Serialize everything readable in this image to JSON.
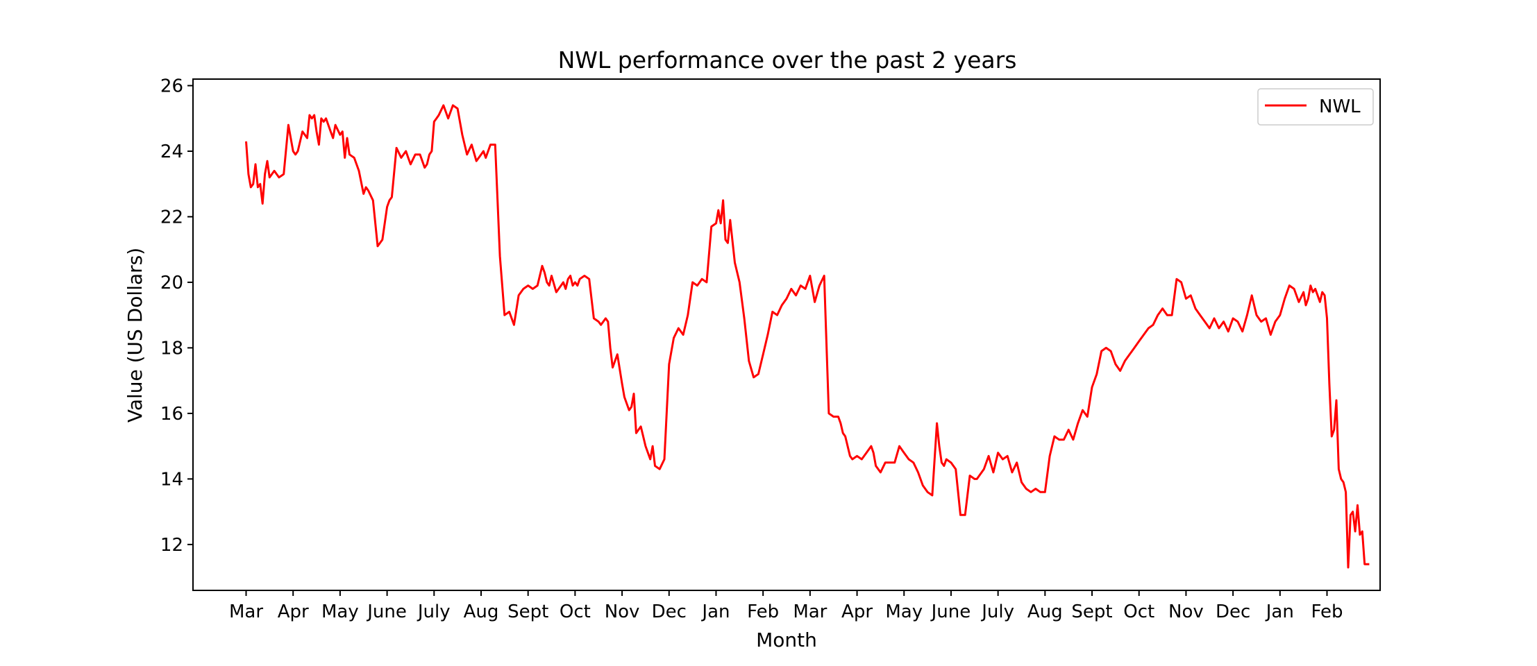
{
  "chart_data": {
    "type": "line",
    "title": "NWL performance over the past 2 years",
    "xlabel": "Month",
    "ylabel": "Value (US Dollars)",
    "grid": false,
    "legend": {
      "location": "top-right",
      "entries": [
        "NWL"
      ]
    },
    "ylim": [
      10.6,
      26.2
    ],
    "y_ticks": [
      12,
      14,
      16,
      18,
      20,
      22,
      24,
      26
    ],
    "x_ticks": [
      "Mar",
      "Apr",
      "May",
      "June",
      "July",
      "Aug",
      "Sept",
      "Oct",
      "Nov",
      "Dec",
      "Jan",
      "Feb",
      "Mar",
      "Apr",
      "May",
      "June",
      "July",
      "Aug",
      "Sept",
      "Oct",
      "Nov",
      "Dec",
      "Jan",
      "Feb"
    ],
    "x_range_months": [
      -1.13,
      24.13
    ],
    "series": [
      {
        "name": "NWL",
        "color": "#ff0000",
        "x_months": [
          0.0,
          0.05,
          0.1,
          0.15,
          0.2,
          0.25,
          0.3,
          0.35,
          0.4,
          0.45,
          0.5,
          0.6,
          0.7,
          0.8,
          0.9,
          1.0,
          1.05,
          1.1,
          1.15,
          1.2,
          1.3,
          1.35,
          1.4,
          1.45,
          1.5,
          1.55,
          1.6,
          1.65,
          1.7,
          1.8,
          1.85,
          1.9,
          2.0,
          2.05,
          2.1,
          2.15,
          2.2,
          2.3,
          2.4,
          2.5,
          2.55,
          2.6,
          2.7,
          2.8,
          2.9,
          2.95,
          3.0,
          3.05,
          3.1,
          3.2,
          3.3,
          3.4,
          3.45,
          3.5,
          3.6,
          3.7,
          3.8,
          3.85,
          3.9,
          3.95,
          4.0,
          4.05,
          4.1,
          4.2,
          4.25,
          4.3,
          4.4,
          4.5,
          4.6,
          4.7,
          4.8,
          4.9,
          5.0,
          5.05,
          5.1,
          5.2,
          5.3,
          5.4,
          5.5,
          5.6,
          5.7,
          5.8,
          5.9,
          6.0,
          6.1,
          6.2,
          6.25,
          6.3,
          6.35,
          6.4,
          6.45,
          6.5,
          6.6,
          6.65,
          6.7,
          6.75,
          6.8,
          6.85,
          6.9,
          6.95,
          7.0,
          7.05,
          7.1,
          7.2,
          7.3,
          7.4,
          7.5,
          7.55,
          7.6,
          7.65,
          7.7,
          7.75,
          7.8,
          7.9,
          8.0,
          8.05,
          8.1,
          8.15,
          8.2,
          8.25,
          8.3,
          8.4,
          8.5,
          8.6,
          8.65,
          8.7,
          8.8,
          8.9,
          9.0,
          9.1,
          9.2,
          9.3,
          9.4,
          9.5,
          9.6,
          9.7,
          9.8,
          9.9,
          10.0,
          10.05,
          10.1,
          10.15,
          10.2,
          10.25,
          10.3,
          10.4,
          10.5,
          10.6,
          10.7,
          10.8,
          10.9,
          11.0,
          11.1,
          11.2,
          11.3,
          11.4,
          11.5,
          11.6,
          11.7,
          11.8,
          11.9,
          12.0,
          12.1,
          12.2,
          12.3,
          12.4,
          12.5,
          12.6,
          12.65,
          12.7,
          12.75,
          12.8,
          12.85,
          12.9,
          13.0,
          13.1,
          13.2,
          13.3,
          13.35,
          13.4,
          13.5,
          13.6,
          13.7,
          13.8,
          13.9,
          14.0,
          14.1,
          14.2,
          14.3,
          14.4,
          14.5,
          14.6,
          14.7,
          14.75,
          14.8,
          14.85,
          14.9,
          15.0,
          15.1,
          15.2,
          15.3,
          15.4,
          15.5,
          15.55,
          15.6,
          15.7,
          15.8,
          15.9,
          16.0,
          16.1,
          16.2,
          16.3,
          16.4,
          16.5,
          16.6,
          16.7,
          16.8,
          16.9,
          17.0,
          17.1,
          17.2,
          17.3,
          17.4,
          17.5,
          17.6,
          17.7,
          17.8,
          17.9,
          18.0,
          18.1,
          18.2,
          18.3,
          18.4,
          18.5,
          18.6,
          18.7,
          18.8,
          18.9,
          19.0,
          19.1,
          19.2,
          19.3,
          19.4,
          19.5,
          19.6,
          19.7,
          19.8,
          19.9,
          20.0,
          20.1,
          20.2,
          20.3,
          20.4,
          20.5,
          20.6,
          20.7,
          20.8,
          20.9,
          21.0,
          21.1,
          21.2,
          21.3,
          21.4,
          21.5,
          21.6,
          21.7,
          21.8,
          21.9,
          22.0,
          22.1,
          22.2,
          22.3,
          22.4,
          22.5,
          22.55,
          22.6,
          22.65,
          22.7,
          22.75,
          22.8,
          22.85,
          22.9,
          22.95,
          23.0,
          23.05,
          23.1,
          23.15,
          23.2,
          23.25,
          23.3,
          23.35,
          23.4,
          23.45,
          23.5,
          23.55,
          23.6,
          23.65,
          23.7,
          23.75,
          23.8,
          23.85,
          23.9
        ],
        "y_values": [
          24.3,
          23.3,
          22.9,
          23.0,
          23.6,
          22.9,
          23.0,
          22.4,
          23.3,
          23.7,
          23.2,
          23.4,
          23.2,
          23.3,
          24.8,
          24.0,
          23.9,
          24.0,
          24.3,
          24.6,
          24.4,
          25.1,
          25.0,
          25.1,
          24.6,
          24.2,
          25.0,
          24.9,
          25.0,
          24.6,
          24.4,
          24.8,
          24.5,
          24.6,
          23.8,
          24.4,
          23.9,
          23.8,
          23.4,
          22.7,
          22.9,
          22.8,
          22.5,
          21.1,
          21.3,
          21.8,
          22.3,
          22.5,
          22.6,
          24.1,
          23.8,
          24.0,
          23.8,
          23.6,
          23.9,
          23.9,
          23.5,
          23.6,
          23.9,
          24.0,
          24.9,
          25.0,
          25.1,
          25.4,
          25.2,
          25.0,
          25.4,
          25.3,
          24.5,
          23.9,
          24.2,
          23.7,
          23.9,
          24.0,
          23.8,
          24.2,
          24.2,
          20.8,
          19.0,
          19.1,
          18.7,
          19.6,
          19.8,
          19.9,
          19.8,
          19.9,
          20.2,
          20.5,
          20.3,
          20.0,
          19.9,
          20.2,
          19.7,
          19.8,
          19.9,
          20.0,
          19.8,
          20.1,
          20.2,
          19.9,
          20.0,
          19.9,
          20.1,
          20.2,
          20.1,
          18.9,
          18.8,
          18.7,
          18.8,
          18.9,
          18.8,
          18.0,
          17.4,
          17.8,
          16.9,
          16.5,
          16.3,
          16.1,
          16.2,
          16.6,
          15.4,
          15.6,
          15.0,
          14.6,
          15.0,
          14.4,
          14.3,
          14.6,
          17.5,
          18.3,
          18.6,
          18.4,
          19.0,
          20.0,
          19.9,
          20.1,
          20.0,
          21.7,
          21.8,
          22.2,
          21.8,
          22.5,
          21.3,
          21.2,
          21.9,
          20.6,
          20.0,
          18.9,
          17.6,
          17.1,
          17.2,
          17.8,
          18.4,
          19.1,
          19.0,
          19.3,
          19.5,
          19.8,
          19.6,
          19.9,
          19.8,
          20.2,
          19.4,
          19.9,
          20.2,
          16.0,
          15.9,
          15.9,
          15.7,
          15.4,
          15.3,
          15.0,
          14.7,
          14.6,
          14.7,
          14.6,
          14.8,
          15.0,
          14.8,
          14.4,
          14.2,
          14.5,
          14.5,
          14.5,
          15.0,
          14.8,
          14.6,
          14.5,
          14.2,
          13.8,
          13.6,
          13.5,
          15.7,
          15.0,
          14.5,
          14.4,
          14.6,
          14.5,
          14.3,
          12.9,
          12.9,
          14.1,
          14.0,
          14.0,
          14.1,
          14.3,
          14.7,
          14.2,
          14.8,
          14.6,
          14.7,
          14.2,
          14.5,
          13.9,
          13.7,
          13.6,
          13.7,
          13.6,
          13.6,
          14.7,
          15.3,
          15.2,
          15.2,
          15.5,
          15.2,
          15.7,
          16.1,
          15.9,
          16.8,
          17.2,
          17.9,
          18.0,
          17.9,
          17.5,
          17.3,
          17.6,
          17.8,
          18.0,
          18.2,
          18.4,
          18.6,
          18.7,
          19.0,
          19.2,
          19.0,
          19.0,
          20.1,
          20.0,
          19.5,
          19.6,
          19.2,
          19.0,
          18.8,
          18.6,
          18.9,
          18.6,
          18.8,
          18.5,
          18.9,
          18.8,
          18.5,
          19.0,
          19.6,
          19.0,
          18.8,
          18.9,
          18.4,
          18.8,
          19.0,
          19.5,
          19.9,
          19.8,
          19.4,
          19.7,
          19.3,
          19.5,
          19.9,
          19.7,
          19.8,
          19.6,
          19.4,
          19.7,
          19.6,
          18.9,
          16.9,
          15.3,
          15.5,
          16.4,
          14.3,
          14.0,
          13.9,
          13.6,
          11.3,
          12.9,
          13.0,
          12.4,
          13.2,
          12.3,
          12.4,
          11.4,
          11.4,
          11.4
        ]
      }
    ]
  }
}
